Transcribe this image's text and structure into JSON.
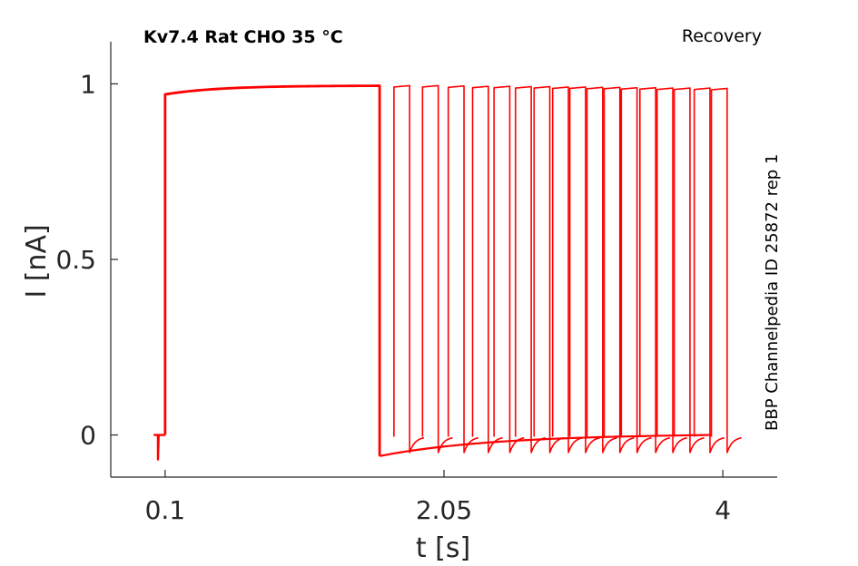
{
  "chart_data": {
    "type": "line",
    "title": "Kv7.4  Rat  CHO  35 °C",
    "protocol": "Recovery",
    "side_note": "BBP Channelpedia ID 25872 rep 1",
    "xlabel": "t [s]",
    "ylabel": "I [nA]",
    "xlim": [
      -0.28,
      4.38
    ],
    "ylim": [
      -0.12,
      1.12
    ],
    "xticks": [
      {
        "value": 0.1,
        "label": "0.1"
      },
      {
        "value": 2.05,
        "label": "2.05"
      },
      {
        "value": 4,
        "label": "4"
      }
    ],
    "yticks": [
      {
        "value": 0,
        "label": "0"
      },
      {
        "value": 0.5,
        "label": "0.5"
      },
      {
        "value": 1,
        "label": "1"
      }
    ],
    "grid": false,
    "color": "#ff0000",
    "prepulse": {
      "start": 0.1,
      "end": 1.6,
      "peak": 0.97,
      "final": 0.995
    },
    "test_pulses": [
      {
        "start": 1.7,
        "end": 1.81,
        "peak": 0.995
      },
      {
        "start": 1.9,
        "end": 2.01,
        "peak": 0.995
      },
      {
        "start": 2.08,
        "end": 2.19,
        "peak": 0.994
      },
      {
        "start": 2.25,
        "end": 2.36,
        "peak": 0.993
      },
      {
        "start": 2.4,
        "end": 2.51,
        "peak": 0.993
      },
      {
        "start": 2.55,
        "end": 2.66,
        "peak": 0.992
      },
      {
        "start": 2.68,
        "end": 2.79,
        "peak": 0.992
      },
      {
        "start": 2.81,
        "end": 2.92,
        "peak": 0.991
      },
      {
        "start": 2.93,
        "end": 3.04,
        "peak": 0.991
      },
      {
        "start": 3.05,
        "end": 3.16,
        "peak": 0.99
      },
      {
        "start": 3.17,
        "end": 3.28,
        "peak": 0.99
      },
      {
        "start": 3.29,
        "end": 3.4,
        "peak": 0.989
      },
      {
        "start": 3.42,
        "end": 3.53,
        "peak": 0.989
      },
      {
        "start": 3.54,
        "end": 3.65,
        "peak": 0.988
      },
      {
        "start": 3.66,
        "end": 3.77,
        "peak": 0.988
      },
      {
        "start": 3.8,
        "end": 3.91,
        "peak": 0.988
      },
      {
        "start": 3.92,
        "end": 4.03,
        "peak": 0.987
      }
    ]
  }
}
